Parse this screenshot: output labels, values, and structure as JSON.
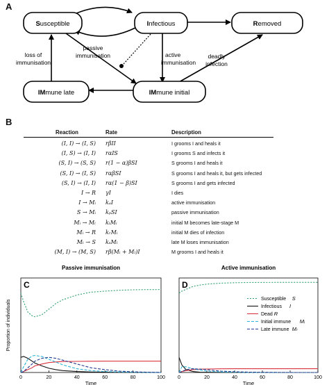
{
  "panel_a": {
    "letter": "A",
    "nodes": {
      "susceptible": {
        "bold": "S",
        "rest": "usceptible"
      },
      "infectious": {
        "bold": "I",
        "rest": "nfectious"
      },
      "removed": {
        "bold": "R",
        "rest": "emoved"
      },
      "immune_late": {
        "bold": "IM",
        "rest": "mune late"
      },
      "immune_initial": {
        "bold": "IM",
        "rest": "mune initial"
      }
    },
    "edge_labels": {
      "loss_line1": "loss of",
      "loss_line2": "immunisation",
      "passive_line1": "passive",
      "passive_line2": "immunisation",
      "active_line1": "active",
      "active_line2": "immunisation",
      "deadly_line1": "deadly",
      "deadly_line2": "infection"
    }
  },
  "panel_b": {
    "letter": "B",
    "headers": {
      "reaction": "Reaction",
      "rate": "Rate",
      "description": "Description"
    },
    "rows": [
      {
        "reaction": "(I, I) → (I, S)",
        "rate": "rβII",
        "description": "I grooms I and heals it"
      },
      {
        "reaction": "(I, S) → (I, I)",
        "rate": "rαIS",
        "description": "I grooms S and infects it"
      },
      {
        "reaction": "(S, I) → (S, S)",
        "rate": "r(1 − α)βSI",
        "description": "S grooms I and heals it"
      },
      {
        "reaction": "(S, I) → (I, S)",
        "rate": "rαβSI",
        "description": "S grooms I and heals it, but gets infected"
      },
      {
        "reaction": "(S, I) → (I, I)",
        "rate": "rα(1 − β)SI",
        "description": "S grooms I and gets infected"
      },
      {
        "reaction": "I → R",
        "rate": "γI",
        "description": "I dies"
      },
      {
        "reaction": "I → Mᵢ",
        "rate": "kₐI",
        "description": "active immunisation"
      },
      {
        "reaction": "S → Mᵢ",
        "rate": "kₚSI",
        "description": "passive immunisation"
      },
      {
        "reaction": "Mᵢ → Mₗ",
        "rate": "kₗMᵢ",
        "description": "initial M becomes late-stage M"
      },
      {
        "reaction": "Mᵢ → R",
        "rate": "kᵣMᵢ",
        "description": "initial M dies of infection"
      },
      {
        "reaction": "Mₗ → S",
        "rate": "kₛMₗ",
        "description": "late M loses immunisation"
      },
      {
        "reaction": "(M, I) → (M, S)",
        "rate": "rβ(Mᵢ + Mₗ)I",
        "description": "M grooms I and heals it"
      }
    ]
  },
  "chart_data": [
    {
      "type": "line",
      "letter": "C",
      "title": "Passive immunisation",
      "xlabel": "Time",
      "ylabel": "Proportion of individuals",
      "xlim": [
        0,
        100
      ],
      "ylim": [
        0,
        1
      ],
      "xticks": [
        0,
        20,
        40,
        60,
        80,
        100
      ],
      "x": [
        0,
        2,
        5,
        8,
        10,
        15,
        20,
        25,
        30,
        40,
        50,
        60,
        70,
        80,
        90,
        100
      ],
      "series": [
        {
          "key": "S",
          "color": "#2e9e6e",
          "dash": "2,2",
          "values": [
            0.84,
            0.75,
            0.64,
            0.6,
            0.59,
            0.61,
            0.67,
            0.73,
            0.77,
            0.82,
            0.85,
            0.86,
            0.87,
            0.875,
            0.877,
            0.878
          ]
        },
        {
          "key": "I",
          "color": "#111111",
          "dash": "",
          "values": [
            0.16,
            0.17,
            0.15,
            0.12,
            0.1,
            0.07,
            0.045,
            0.03,
            0.02,
            0.01,
            0.005,
            0.003,
            0.002,
            0.001,
            0.001,
            0.0
          ]
        },
        {
          "key": "R",
          "color": "#d9333f",
          "dash": "",
          "values": [
            0.0,
            0.01,
            0.03,
            0.05,
            0.07,
            0.09,
            0.105,
            0.112,
            0.116,
            0.118,
            0.119,
            0.12,
            0.12,
            0.12,
            0.12,
            0.12
          ]
        },
        {
          "key": "Mi",
          "color": "#2ab3d6",
          "dash": "4,2",
          "values": [
            0.0,
            0.06,
            0.14,
            0.175,
            0.18,
            0.17,
            0.14,
            0.11,
            0.08,
            0.04,
            0.02,
            0.01,
            0.005,
            0.002,
            0.001,
            0.0
          ]
        },
        {
          "key": "Ml",
          "color": "#223a8f",
          "dash": "4,2",
          "values": [
            0.0,
            0.01,
            0.05,
            0.09,
            0.12,
            0.15,
            0.16,
            0.15,
            0.13,
            0.09,
            0.05,
            0.03,
            0.015,
            0.007,
            0.003,
            0.001
          ]
        }
      ]
    },
    {
      "type": "line",
      "letter": "D",
      "title": "Active immunisation",
      "xlabel": "Time",
      "ylabel": "",
      "xlim": [
        0,
        100
      ],
      "ylim": [
        0,
        1
      ],
      "xticks": [
        0,
        20,
        40,
        60,
        80,
        100
      ],
      "x": [
        0,
        2,
        5,
        10,
        15,
        20,
        30,
        40,
        50,
        60,
        80,
        100
      ],
      "series": [
        {
          "key": "S",
          "color": "#2e9e6e",
          "dash": "2,2",
          "values": [
            0.84,
            0.86,
            0.88,
            0.91,
            0.925,
            0.935,
            0.945,
            0.95,
            0.952,
            0.953,
            0.954,
            0.954
          ]
        },
        {
          "key": "I",
          "color": "#111111",
          "dash": "",
          "values": [
            0.16,
            0.08,
            0.03,
            0.01,
            0.004,
            0.002,
            0.001,
            0.0,
            0.0,
            0.0,
            0.0,
            0.0
          ]
        },
        {
          "key": "R",
          "color": "#d9333f",
          "dash": "",
          "values": [
            0.0,
            0.01,
            0.02,
            0.03,
            0.035,
            0.037,
            0.039,
            0.04,
            0.04,
            0.04,
            0.04,
            0.04
          ]
        },
        {
          "key": "Mi",
          "color": "#2ab3d6",
          "dash": "4,2",
          "values": [
            0.0,
            0.06,
            0.06,
            0.04,
            0.025,
            0.015,
            0.006,
            0.003,
            0.001,
            0.0,
            0.0,
            0.0
          ]
        },
        {
          "key": "Ml",
          "color": "#223a8f",
          "dash": "4,2",
          "values": [
            0.0,
            0.01,
            0.03,
            0.04,
            0.035,
            0.03,
            0.015,
            0.008,
            0.004,
            0.002,
            0.0,
            0.0
          ]
        }
      ]
    }
  ],
  "legend": [
    {
      "key": "S",
      "label": "Susceptible",
      "sym": "S"
    },
    {
      "key": "I",
      "label": "Infectious",
      "sym": "I"
    },
    {
      "key": "R",
      "label": "Dead",
      "sym": "R"
    },
    {
      "key": "Mi",
      "label": "Initial immune",
      "sym": "Mᵢ"
    },
    {
      "key": "Ml",
      "label": "Late immune",
      "sym": "Mₗ"
    }
  ]
}
